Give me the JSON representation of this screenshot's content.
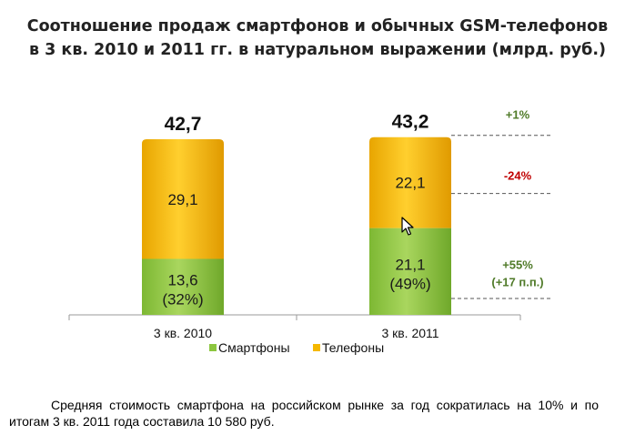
{
  "chart_data": {
    "type": "bar",
    "stacked": true,
    "title_lines": [
      "Соотношение продаж смартфонов и обычных GSM-телефонов",
      "в 3 кв. 2010 и 2011 гг. в натуральном выражении (млрд. руб.)"
    ],
    "categories": [
      "3 кв. 2010",
      "3 кв. 2011"
    ],
    "series": [
      {
        "name": "Смартфоны",
        "values": [
          13.6,
          21.1
        ],
        "color": "#8cc63f",
        "labels": [
          "13,6",
          "21,1"
        ],
        "share_labels": [
          "(32%)",
          "(49%)"
        ]
      },
      {
        "name": "Телефоны",
        "values": [
          29.1,
          22.1
        ],
        "color": "#f5b800",
        "labels": [
          "29,1",
          "22,1"
        ]
      }
    ],
    "totals": [
      42.7,
      43.2
    ],
    "total_labels": [
      "42,7",
      "43,2"
    ],
    "annotations": [
      {
        "target": "total",
        "text": "+1%",
        "color": "#4f7a28"
      },
      {
        "target": "Телефоны",
        "text": "-24%",
        "color": "#c00000"
      },
      {
        "target": "Смартфоны",
        "lines": [
          "+55%",
          "(+17 п.п.)"
        ],
        "color": "#4f7a28"
      }
    ],
    "legend_position": "bottom",
    "ylim": [
      0,
      46.5
    ]
  },
  "caption": "Средняя стоимость смартфона на российском рынке  за год сократилась на 10% и по итогам 3 кв. 2011 года составила 10 580 руб."
}
